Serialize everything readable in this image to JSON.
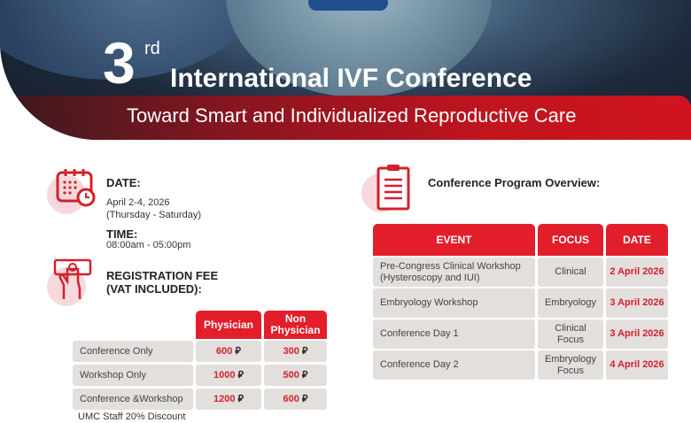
{
  "banner": {
    "ordinal_number": "3",
    "ordinal_suffix": "rd",
    "title": "International IVF Conference",
    "subtitle": "Toward Smart and Individualized Reproductive Care"
  },
  "schedule": {
    "date_label": "DATE:",
    "date_value": "April 2-4, 2026",
    "date_days": "(Thursday - Saturday)",
    "time_label": "TIME:",
    "time_value": "08:00am - 05:00pm"
  },
  "fees": {
    "label_line1": "REGISTRATION FEE",
    "label_line2": "(VAT INCLUDED):",
    "columns": [
      "Physician",
      "Non Physician"
    ],
    "rows": [
      {
        "item": "Conference Only",
        "physician": "600",
        "non_physician": "300"
      },
      {
        "item": "Workshop Only",
        "physician": "1000",
        "non_physician": "500"
      },
      {
        "item": "Conference &Workshop",
        "physician": "1200",
        "non_physician": "600"
      }
    ],
    "currency_symbol": "⃁",
    "footnote": "UMC Staff 20% Discount"
  },
  "program": {
    "title": "Conference Program Overview:",
    "columns": [
      "EVENT",
      "FOCUS",
      "DATE"
    ],
    "rows": [
      {
        "event": "Pre-Congress Clinical Workshop (Hysteroscopy and IUI)",
        "focus": "Clinical",
        "date": "2 April 2026"
      },
      {
        "event": "Embryology Workshop",
        "focus": "Embryology",
        "date": "3 April 2026"
      },
      {
        "event": "Conference Day 1",
        "focus": "Clinical Focus",
        "date": "3 April 2026"
      },
      {
        "event": "Conference Day 2",
        "focus": "Embryology Focus",
        "date": "4 April 2026"
      }
    ]
  },
  "colors": {
    "accent": "#e31e2b",
    "cell_bg": "#e2dfdd"
  }
}
